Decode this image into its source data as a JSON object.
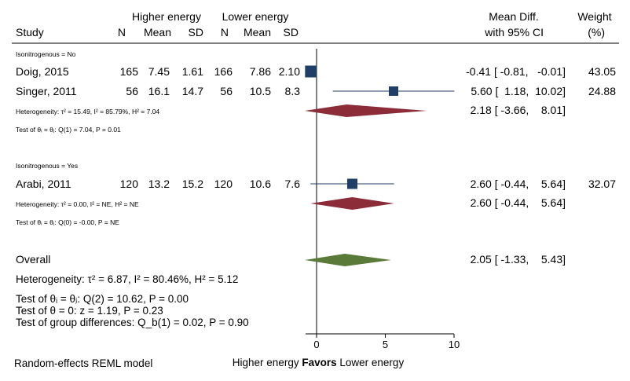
{
  "header": {
    "group1": "Higher energy",
    "group2": "Lower energy",
    "study": "Study",
    "n": "N",
    "mean": "Mean",
    "sd": "SD",
    "md1": "Mean Diff.",
    "md2": "with 95% CI",
    "w1": "Weight",
    "w2": "(%)"
  },
  "footer": {
    "model": "Random-effects REML model",
    "favors_left": "Higher energy",
    "favors_mid": "Favors",
    "favors_right": "Lower energy"
  },
  "colors": {
    "marker": "#1f3f66",
    "subgroup_diamond": "#8b2c38",
    "overall_diamond": "#5a7a3a"
  },
  "chart_data": {
    "type": "forest",
    "xlim": [
      0,
      10
    ],
    "xticks": [
      0,
      5,
      10
    ],
    "reference_line": 0,
    "subgroups": [
      {
        "label": "Isonitrogenous = No",
        "studies": [
          {
            "name": "Doig, 2015",
            "n1": "165",
            "mean1": "7.45",
            "sd1": "1.61",
            "n2": "166",
            "mean2": "7.86",
            "sd2": "2.10",
            "md": -0.41,
            "lo": -0.81,
            "hi": -0.01,
            "ci_text": "-0.41 [ -0.81,   -0.01]",
            "weight": "43.05"
          },
          {
            "name": "Singer, 2011",
            "n1": "56",
            "mean1": "16.1",
            "sd1": "14.7",
            "n2": "56",
            "mean2": "10.5",
            "sd2": "8.3",
            "md": 5.6,
            "lo": 1.18,
            "hi": 10.02,
            "ci_text": "5.60 [  1.18,  10.02]",
            "weight": "24.88"
          }
        ],
        "heterogeneity": "Heterogeneity: τ² = 15.49, I² = 85.79%, H² = 7.04",
        "pooled": {
          "md": 2.18,
          "lo": -3.66,
          "hi": 8.01,
          "ci_text": "2.18 [ -3.66,    8.01]"
        },
        "test": "Test of θᵢ = θⱼ: Q(1) = 7.04, P = 0.01"
      },
      {
        "label": "Isonitrogenous = Yes",
        "studies": [
          {
            "name": "Arabi, 2011",
            "n1": "120",
            "mean1": "13.2",
            "sd1": "15.2",
            "n2": "120",
            "mean2": "10.6",
            "sd2": "7.6",
            "md": 2.6,
            "lo": -0.44,
            "hi": 5.64,
            "ci_text": "2.60 [ -0.44,    5.64]",
            "weight": "32.07"
          }
        ],
        "heterogeneity": "Heterogeneity: τ² = 0.00, I² = NE, H² = NE",
        "pooled": {
          "md": 2.6,
          "lo": -0.44,
          "hi": 5.64,
          "ci_text": "2.60 [ -0.44,    5.64]"
        },
        "test": "Test of θᵢ = θⱼ: Q(0) = -0.00, P = NE"
      }
    ],
    "overall": {
      "label": "Overall",
      "md": 2.05,
      "lo": -1.33,
      "hi": 5.43,
      "ci_text": "2.05 [ -1.33,    5.43]",
      "heterogeneity": "Heterogeneity: τ² = 6.87, I² = 80.46%, H² = 5.12",
      "test_homog": "Test of θᵢ = θⱼ: Q(2) = 10.62, P = 0.00",
      "test_zero": "Test of θ = 0: z = 1.19, P = 0.23",
      "test_groups": "Test of group differences: Q_b(1) = 0.02, P = 0.90"
    }
  }
}
